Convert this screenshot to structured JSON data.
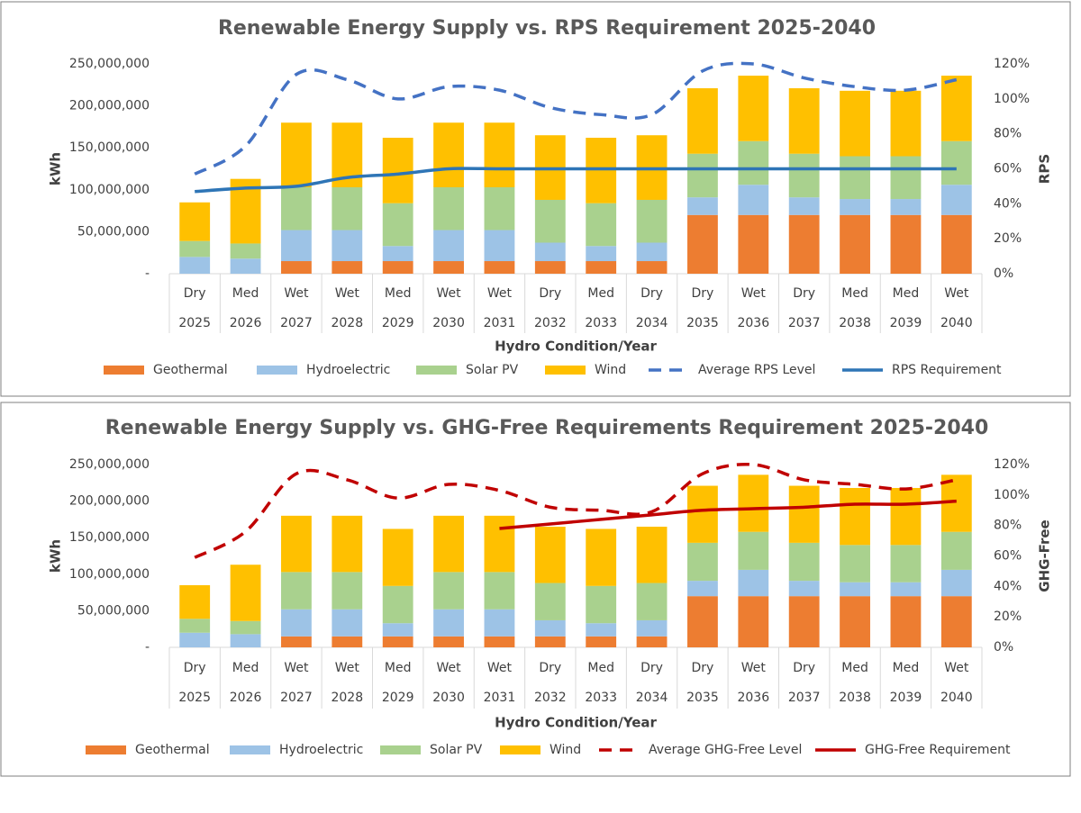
{
  "chart_data": [
    {
      "type": "bar",
      "title": "Renewable Energy Supply vs. RPS Requirement 2025-2040",
      "x_label": "Hydro Condition/Year",
      "y_label": "kWh",
      "y2_label": "RPS",
      "categories": [
        "Dry",
        "Med",
        "Wet",
        "Wet",
        "Med",
        "Wet",
        "Wet",
        "Dry",
        "Med",
        "Dry",
        "Dry",
        "Wet",
        "Dry",
        "Med",
        "Med",
        "Wet"
      ],
      "years": [
        "2025",
        "2026",
        "2027",
        "2028",
        "2029",
        "2030",
        "2031",
        "2032",
        "2033",
        "2034",
        "2035",
        "2036",
        "2037",
        "2038",
        "2039",
        "2040"
      ],
      "ylim": [
        0,
        250000000
      ],
      "yticks": [
        {
          "value": 0,
          "label": "-"
        },
        {
          "value": 50000000,
          "label": "50,000,000"
        },
        {
          "value": 100000000,
          "label": "100,000,000"
        },
        {
          "value": 150000000,
          "label": "150,000,000"
        },
        {
          "value": 200000000,
          "label": "200,000,000"
        },
        {
          "value": 250000000,
          "label": "250,000,000"
        }
      ],
      "y2lim": [
        0,
        120
      ],
      "y2ticks": [
        {
          "value": 0,
          "label": "0%"
        },
        {
          "value": 20,
          "label": "20%"
        },
        {
          "value": 40,
          "label": "40%"
        },
        {
          "value": 60,
          "label": "60%"
        },
        {
          "value": 80,
          "label": "80%"
        },
        {
          "value": 100,
          "label": "100%"
        },
        {
          "value": 120,
          "label": "120%"
        }
      ],
      "series": [
        {
          "name": "Geothermal",
          "type": "bar",
          "color": "#ed7d31",
          "values": [
            0,
            0,
            15000000,
            15000000,
            15000000,
            15000000,
            15000000,
            15000000,
            15000000,
            15000000,
            70000000,
            70000000,
            70000000,
            70000000,
            70000000,
            70000000
          ]
        },
        {
          "name": "Hydroelectric",
          "type": "bar",
          "color": "#9dc3e6",
          "values": [
            20000000,
            18000000,
            37000000,
            37000000,
            18000000,
            37000000,
            37000000,
            22000000,
            18000000,
            22000000,
            21000000,
            36000000,
            21000000,
            19000000,
            19000000,
            36000000
          ]
        },
        {
          "name": "Solar PV",
          "type": "bar",
          "color": "#a9d18e",
          "values": [
            19000000,
            18000000,
            51000000,
            51000000,
            51000000,
            51000000,
            51000000,
            51000000,
            51000000,
            51000000,
            52000000,
            52000000,
            52000000,
            51000000,
            51000000,
            52000000
          ]
        },
        {
          "name": "Wind",
          "type": "bar",
          "color": "#ffc000",
          "values": [
            46000000,
            77000000,
            77000000,
            77000000,
            78000000,
            77000000,
            77000000,
            77000000,
            78000000,
            77000000,
            78000000,
            78000000,
            78000000,
            78000000,
            78000000,
            78000000
          ]
        },
        {
          "name": "Average RPS Level",
          "type": "line",
          "axis": "y2",
          "dashed": true,
          "color": "#4472c4",
          "values": [
            57,
            73,
            114,
            111,
            100,
            107,
            105,
            95,
            91,
            91,
            116,
            120,
            112,
            107,
            105,
            111
          ]
        },
        {
          "name": "RPS Requirement",
          "type": "line",
          "axis": "y2",
          "dashed": false,
          "color": "#2e75b6",
          "values": [
            47,
            49,
            50,
            55,
            57,
            60,
            60,
            60,
            60,
            60,
            60,
            60,
            60,
            60,
            60,
            60
          ]
        }
      ]
    },
    {
      "type": "bar",
      "title": "Renewable Energy Supply vs. GHG-Free Requirements Requirement 2025-2040",
      "x_label": "Hydro Condition/Year",
      "y_label": "kWh",
      "y2_label": "GHG-Free",
      "categories": [
        "Dry",
        "Med",
        "Wet",
        "Wet",
        "Med",
        "Wet",
        "Wet",
        "Dry",
        "Med",
        "Dry",
        "Dry",
        "Wet",
        "Dry",
        "Med",
        "Med",
        "Wet"
      ],
      "years": [
        "2025",
        "2026",
        "2027",
        "2028",
        "2029",
        "2030",
        "2031",
        "2032",
        "2033",
        "2034",
        "2035",
        "2036",
        "2037",
        "2038",
        "2039",
        "2040"
      ],
      "ylim": [
        0,
        250000000
      ],
      "yticks": [
        {
          "value": 0,
          "label": "-"
        },
        {
          "value": 50000000,
          "label": "50,000,000"
        },
        {
          "value": 100000000,
          "label": "100,000,000"
        },
        {
          "value": 150000000,
          "label": "150,000,000"
        },
        {
          "value": 200000000,
          "label": "200,000,000"
        },
        {
          "value": 250000000,
          "label": "250,000,000"
        }
      ],
      "y2lim": [
        0,
        120
      ],
      "y2ticks": [
        {
          "value": 0,
          "label": "0%"
        },
        {
          "value": 20,
          "label": "20%"
        },
        {
          "value": 40,
          "label": "40%"
        },
        {
          "value": 60,
          "label": "60%"
        },
        {
          "value": 80,
          "label": "80%"
        },
        {
          "value": 100,
          "label": "100%"
        },
        {
          "value": 120,
          "label": "120%"
        }
      ],
      "series": [
        {
          "name": "Geothermal",
          "type": "bar",
          "color": "#ed7d31",
          "values": [
            0,
            0,
            15000000,
            15000000,
            15000000,
            15000000,
            15000000,
            15000000,
            15000000,
            15000000,
            70000000,
            70000000,
            70000000,
            70000000,
            70000000,
            70000000
          ]
        },
        {
          "name": "Hydroelectric",
          "type": "bar",
          "color": "#9dc3e6",
          "values": [
            20000000,
            18000000,
            37000000,
            37000000,
            18000000,
            37000000,
            37000000,
            22000000,
            18000000,
            22000000,
            21000000,
            36000000,
            21000000,
            19000000,
            19000000,
            36000000
          ]
        },
        {
          "name": "Solar PV",
          "type": "bar",
          "color": "#a9d18e",
          "values": [
            19000000,
            18000000,
            51000000,
            51000000,
            51000000,
            51000000,
            51000000,
            51000000,
            51000000,
            51000000,
            52000000,
            52000000,
            52000000,
            51000000,
            51000000,
            52000000
          ]
        },
        {
          "name": "Wind",
          "type": "bar",
          "color": "#ffc000",
          "values": [
            46000000,
            77000000,
            77000000,
            77000000,
            78000000,
            77000000,
            77000000,
            77000000,
            78000000,
            77000000,
            78000000,
            78000000,
            78000000,
            78000000,
            78000000,
            78000000
          ]
        },
        {
          "name": "Average GHG-Free Level",
          "type": "line",
          "axis": "y2",
          "dashed": true,
          "color": "#c00000",
          "values": [
            59,
            76,
            114,
            110,
            98,
            107,
            103,
            92,
            90,
            89,
            114,
            120,
            110,
            107,
            104,
            110
          ]
        },
        {
          "name": "GHG-Free Requirement",
          "type": "line",
          "axis": "y2",
          "dashed": false,
          "color": "#c00000",
          "values": [
            null,
            null,
            null,
            null,
            null,
            null,
            78,
            81,
            84,
            87,
            90,
            91,
            92,
            94,
            94,
            96
          ]
        }
      ]
    }
  ]
}
